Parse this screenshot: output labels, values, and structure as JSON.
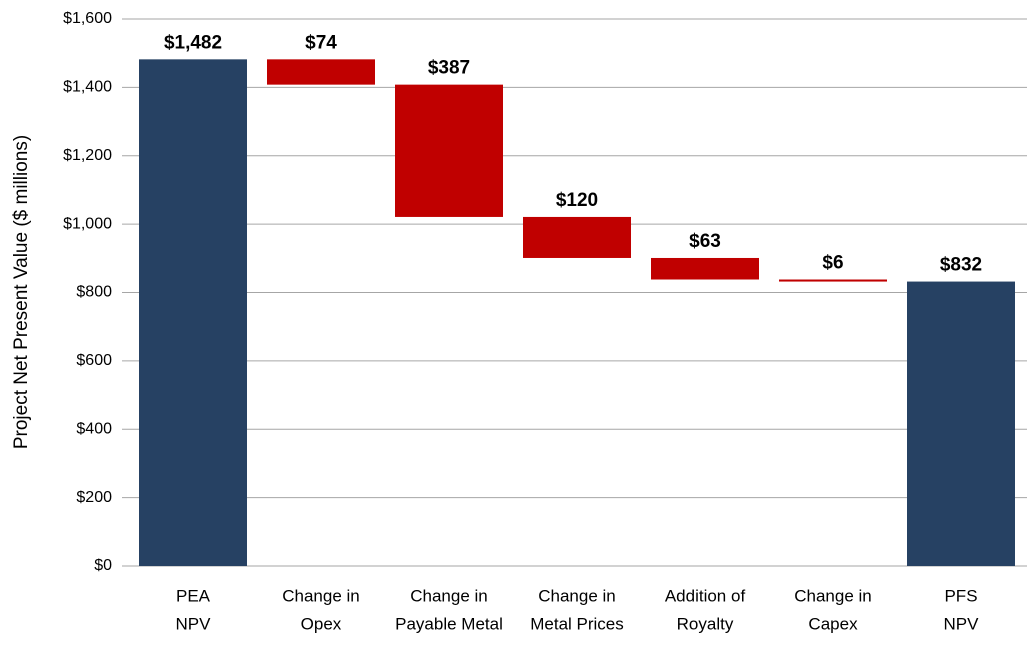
{
  "chart_data": {
    "type": "waterfall",
    "ylabel": "Project Net Present Value ($ millions)",
    "categories": [
      [
        "PEA",
        "NPV"
      ],
      [
        "Change in",
        "Opex"
      ],
      [
        "Change in",
        "Payable Metal"
      ],
      [
        "Change in",
        "Metal Prices"
      ],
      [
        "Addition of",
        "Royalty"
      ],
      [
        "Change in",
        "Capex"
      ],
      [
        "PFS",
        "NPV"
      ]
    ],
    "measure": [
      "absolute",
      "relative",
      "relative",
      "relative",
      "relative",
      "relative",
      "absolute"
    ],
    "values": [
      1482,
      -74,
      -387,
      -120,
      -63,
      -6,
      832
    ],
    "value_labels": [
      "$1,482",
      "$74",
      "$387",
      "$120",
      "$63",
      "$6",
      "$832"
    ],
    "colors": {
      "total": "#264163",
      "decrease": "#c00000",
      "increase": "#5b9b3a"
    },
    "ylim": [
      0,
      1600
    ],
    "yticks": [
      {
        "value": 0,
        "label": "$0"
      },
      {
        "value": 200,
        "label": "$200"
      },
      {
        "value": 400,
        "label": "$400"
      },
      {
        "value": 600,
        "label": "$600"
      },
      {
        "value": 800,
        "label": "$800"
      },
      {
        "value": 1000,
        "label": "$1,000"
      },
      {
        "value": 1200,
        "label": "$1,200"
      },
      {
        "value": 1400,
        "label": "$1,400"
      },
      {
        "value": 1600,
        "label": "$1,600"
      }
    ],
    "grid": true
  }
}
